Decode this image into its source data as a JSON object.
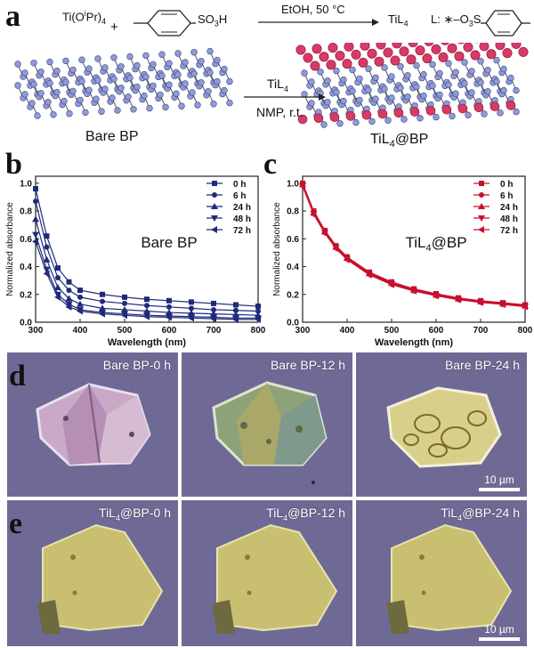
{
  "panel_labels": [
    "a",
    "b",
    "c",
    "d",
    "e"
  ],
  "scheme": {
    "reactant1": "Ti(O",
    "reactant1_sup": "i",
    "reactant1_end": "Pr)",
    "reactant1_sub": "4",
    "plus": "+",
    "reactant2_group": "SO",
    "reactant2_sub": "3",
    "reactant2_end": "H",
    "conditions": "EtOH, 50 °C",
    "product": "TiL",
    "product_sub": "4",
    "ligand_prefix": "L: ",
    "ligand_star": "∗",
    "ligand_group": "–O",
    "ligand_sub": "3",
    "ligand_end": "S",
    "left_label": "Bare BP",
    "arrow_top": "TiL",
    "arrow_top_sub": "4",
    "arrow_bottom": "NMP, r.t.",
    "right_label": "TiL",
    "right_label_sub": "4",
    "right_label_end": "@BP"
  },
  "chart_data": [
    {
      "type": "line",
      "panel": "b",
      "inset_label": "Bare BP",
      "xlabel": "Wavelength (nm)",
      "ylabel": "Normalized absorbance",
      "xlim": [
        300,
        800
      ],
      "ylim": [
        0.0,
        1.05
      ],
      "xticks": [
        300,
        400,
        500,
        600,
        700,
        800
      ],
      "yticks": [
        0.0,
        0.2,
        0.4,
        0.6,
        0.8,
        1.0
      ],
      "legend_position": "top-right",
      "color": "#1f2a7a",
      "x": [
        300,
        325,
        350,
        375,
        400,
        450,
        500,
        550,
        600,
        650,
        700,
        750,
        800
      ],
      "series": [
        {
          "name": "0 h",
          "marker": "square",
          "values": [
            0.96,
            0.62,
            0.39,
            0.29,
            0.23,
            0.2,
            0.18,
            0.165,
            0.155,
            0.145,
            0.135,
            0.125,
            0.115
          ]
        },
        {
          "name": "6 h",
          "marker": "circle",
          "values": [
            0.87,
            0.54,
            0.32,
            0.23,
            0.18,
            0.15,
            0.135,
            0.12,
            0.11,
            0.1,
            0.09,
            0.085,
            0.08
          ]
        },
        {
          "name": "24 h",
          "marker": "triangle-up",
          "values": [
            0.74,
            0.45,
            0.25,
            0.17,
            0.13,
            0.1,
            0.09,
            0.08,
            0.07,
            0.065,
            0.06,
            0.055,
            0.05
          ]
        },
        {
          "name": "48 h",
          "marker": "triangle-down",
          "values": [
            0.63,
            0.38,
            0.2,
            0.13,
            0.09,
            0.07,
            0.06,
            0.05,
            0.045,
            0.04,
            0.035,
            0.03,
            0.03
          ]
        },
        {
          "name": "72 h",
          "marker": "triangle-left",
          "values": [
            0.58,
            0.35,
            0.18,
            0.11,
            0.08,
            0.06,
            0.05,
            0.04,
            0.035,
            0.03,
            0.025,
            0.02,
            0.02
          ]
        }
      ]
    },
    {
      "type": "line",
      "panel": "c",
      "inset_label": "TiL",
      "inset_label_sub": "4",
      "inset_label_end": "@BP",
      "xlabel": "Wavelength (nm)",
      "ylabel": "Normalized absorbance",
      "xlim": [
        300,
        800
      ],
      "ylim": [
        0.0,
        1.05
      ],
      "xticks": [
        300,
        400,
        500,
        600,
        700,
        800
      ],
      "yticks": [
        0.0,
        0.2,
        0.4,
        0.6,
        0.8,
        1.0
      ],
      "legend_position": "top-right",
      "color": "#c8102e",
      "x": [
        300,
        325,
        350,
        375,
        400,
        450,
        500,
        550,
        600,
        650,
        700,
        750,
        800
      ],
      "series": [
        {
          "name": "0 h",
          "marker": "square",
          "values": [
            1.0,
            0.8,
            0.66,
            0.55,
            0.47,
            0.36,
            0.29,
            0.24,
            0.205,
            0.175,
            0.155,
            0.14,
            0.125
          ]
        },
        {
          "name": "6 h",
          "marker": "circle",
          "values": [
            0.99,
            0.79,
            0.655,
            0.545,
            0.465,
            0.355,
            0.285,
            0.235,
            0.2,
            0.17,
            0.15,
            0.135,
            0.12
          ]
        },
        {
          "name": "24 h",
          "marker": "triangle-up",
          "values": [
            0.99,
            0.785,
            0.65,
            0.54,
            0.46,
            0.35,
            0.28,
            0.23,
            0.195,
            0.168,
            0.148,
            0.132,
            0.118
          ]
        },
        {
          "name": "48 h",
          "marker": "triangle-down",
          "values": [
            0.98,
            0.78,
            0.645,
            0.535,
            0.455,
            0.345,
            0.275,
            0.228,
            0.192,
            0.165,
            0.145,
            0.13,
            0.115
          ]
        },
        {
          "name": "72 h",
          "marker": "triangle-left",
          "values": [
            0.98,
            0.775,
            0.64,
            0.53,
            0.45,
            0.34,
            0.27,
            0.225,
            0.19,
            0.162,
            0.142,
            0.128,
            0.112
          ]
        }
      ]
    }
  ],
  "micrographs": {
    "row_d": [
      {
        "label": "Bare BP-0 h"
      },
      {
        "label": "Bare BP-12 h"
      },
      {
        "label": "Bare BP-24 h",
        "scale": "10 µm"
      }
    ],
    "row_e": [
      {
        "label": "TiL",
        "label_sub": "4",
        "label_end": "@BP-0 h"
      },
      {
        "label": "TiL",
        "label_sub": "4",
        "label_end": "@BP-12 h"
      },
      {
        "label": "TiL",
        "label_sub": "4",
        "label_end": "@BP-24 h",
        "scale": "10 µm"
      }
    ]
  },
  "colors": {
    "bp_atom": "#8f9bd6",
    "til4_atom": "#d83a66",
    "micro_background": "#6f6a95",
    "bare_flake": "#c9a8c8",
    "coated_flake": "#c8c070"
  }
}
